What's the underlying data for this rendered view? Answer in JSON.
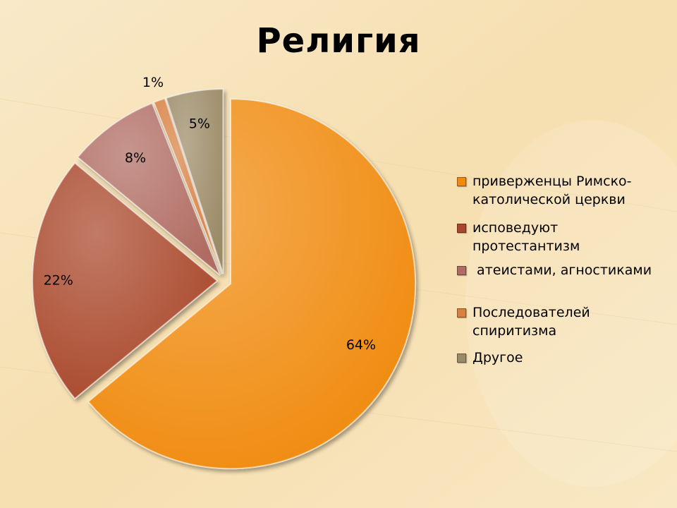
{
  "title": "Религия",
  "chart_data": {
    "type": "pie",
    "title": "Религия",
    "legend_position": "right",
    "categories": [
      "приверженцы Римско-католической церкви",
      "исповедуют протестантизм",
      " атеистами, агностиками",
      "Последователей спиритизма",
      "Другое"
    ],
    "values": [
      64,
      22,
      8,
      1,
      5
    ],
    "labels": [
      "64%",
      "22%",
      "8%",
      "1%",
      "5%"
    ],
    "colors": [
      "#f08a0e",
      "#a9462c",
      "#b06c62",
      "#d8803f",
      "#9b8a66"
    ]
  },
  "legend": [
    {
      "text": "приверженцы Римско-\nкатолической церкви",
      "color": "#f08a0e"
    },
    {
      "text": "исповедуют протестантизм",
      "color": "#a9462c"
    },
    {
      "text": " атеистами, агностиками",
      "color": "#b06c62"
    },
    {
      "text": "Последователей\nспиритизма",
      "color": "#d8803f"
    },
    {
      "text": "Другое",
      "color": "#9b8a66"
    }
  ]
}
